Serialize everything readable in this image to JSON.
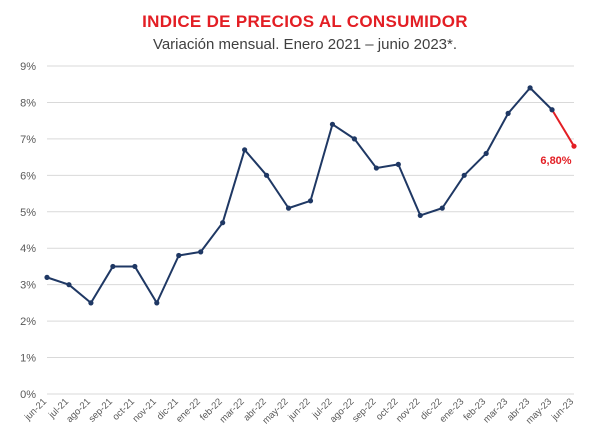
{
  "chart_data": {
    "type": "line",
    "title": "INDICE DE PRECIOS AL CONSUMIDOR",
    "subtitle": "Variación mensual. Enero 2021 – junio 2023*.",
    "xlabel": "",
    "ylabel": "",
    "ylim": [
      0,
      9
    ],
    "y_ticks": [
      "0%",
      "1%",
      "2%",
      "3%",
      "4%",
      "5%",
      "6%",
      "7%",
      "8%",
      "9%"
    ],
    "grid": true,
    "categories": [
      "jun-21",
      "jul-21",
      "ago-21",
      "sep-21",
      "oct-21",
      "nov-21",
      "dic-21",
      "ene-22",
      "feb-22",
      "mar-22",
      "abr-22",
      "may-22",
      "jun-22",
      "jul-22",
      "ago-22",
      "sep-22",
      "oct-22",
      "nov-22",
      "dic-22",
      "ene-23",
      "feb-23",
      "mar-23",
      "abr-23",
      "may-23",
      "jun-23"
    ],
    "series": [
      {
        "values": [
          3.2,
          3.0,
          2.5,
          3.5,
          3.5,
          2.5,
          3.8,
          3.9,
          4.7,
          6.7,
          6.0,
          5.1,
          5.3,
          7.4,
          7.0,
          6.2,
          6.3,
          4.9,
          5.1,
          6.0,
          6.6,
          7.7,
          8.4,
          7.8,
          6.8
        ]
      }
    ],
    "colors": {
      "line": "#1f3864",
      "last_segment": "#e31e24",
      "title": "#e31e24"
    },
    "annotations": [
      {
        "category": "jun-23",
        "text": "6,80%"
      }
    ]
  }
}
